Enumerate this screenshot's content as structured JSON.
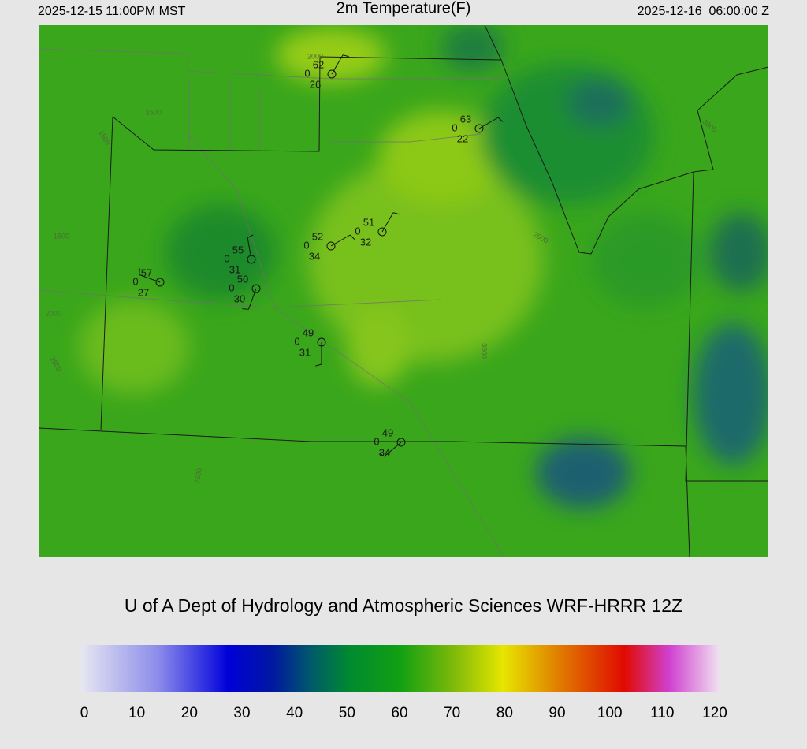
{
  "header": {
    "left": "2025-12-15 11:00PM MST",
    "title": "2m Temperature(F)",
    "right": "2025-12-16_06:00:00 Z"
  },
  "stations": [
    {
      "temperature": 62,
      "center_value": 0,
      "dewpoint": 26
    },
    {
      "temperature": 63,
      "center_value": 0,
      "dewpoint": 22
    },
    {
      "temperature": 51,
      "center_value": 0,
      "dewpoint": 32
    },
    {
      "temperature": 52,
      "center_value": 0,
      "dewpoint": 34
    },
    {
      "temperature": 55,
      "center_value": 0,
      "dewpoint": 31
    },
    {
      "temperature": 50,
      "center_value": 0,
      "dewpoint": 30
    },
    {
      "temperature": 57,
      "center_value": 0,
      "dewpoint": 27
    },
    {
      "temperature": 49,
      "center_value": 0,
      "dewpoint": 31
    },
    {
      "temperature": 49,
      "center_value": 0,
      "dewpoint": 34
    }
  ],
  "contour_labels": [
    1500,
    1500,
    1500,
    2000,
    2000,
    2000,
    2500,
    2500,
    3000,
    3000
  ],
  "credit": "U of A Dept of Hydrology and Atmospheric Sciences WRF-HRRR 12Z",
  "colorbar": {
    "ticks": [
      0,
      10,
      20,
      30,
      40,
      50,
      60,
      70,
      80,
      90,
      100,
      110,
      120
    ]
  }
}
